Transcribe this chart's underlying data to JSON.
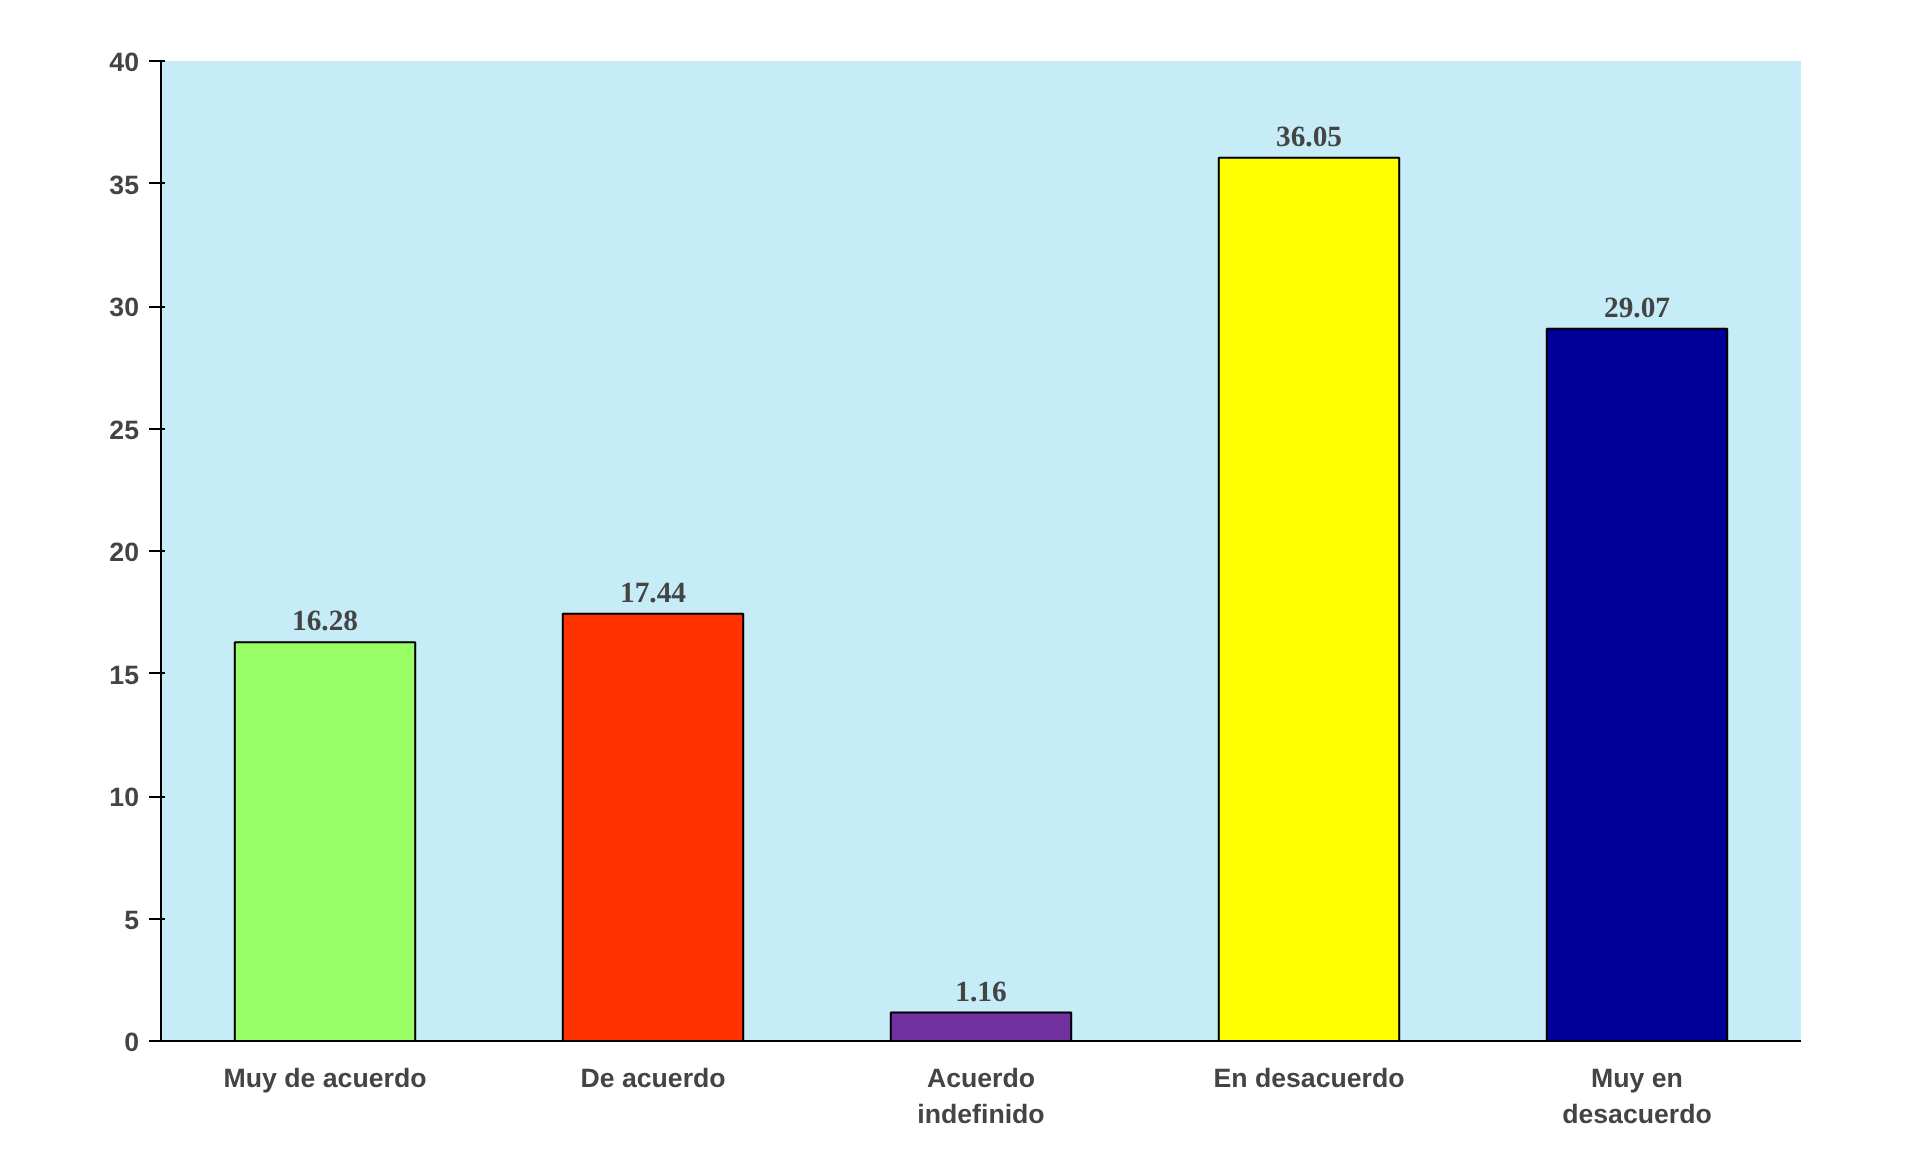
{
  "chart_data": {
    "type": "bar",
    "categories": [
      "Muy de acuerdo",
      "De acuerdo",
      "Acuerdo\nindefinido",
      "En desacuerdo",
      "Muy en\ndesacuerdo"
    ],
    "values": [
      16.28,
      17.44,
      1.16,
      36.05,
      29.07
    ],
    "colors": [
      "#99ff66",
      "#ff3300",
      "#7030a0",
      "#ffff00",
      "#000099"
    ],
    "ylim": [
      0,
      40
    ],
    "yticks": [
      0,
      5,
      10,
      15,
      20,
      25,
      30,
      35,
      40
    ],
    "grid": false,
    "data_labels": true
  }
}
